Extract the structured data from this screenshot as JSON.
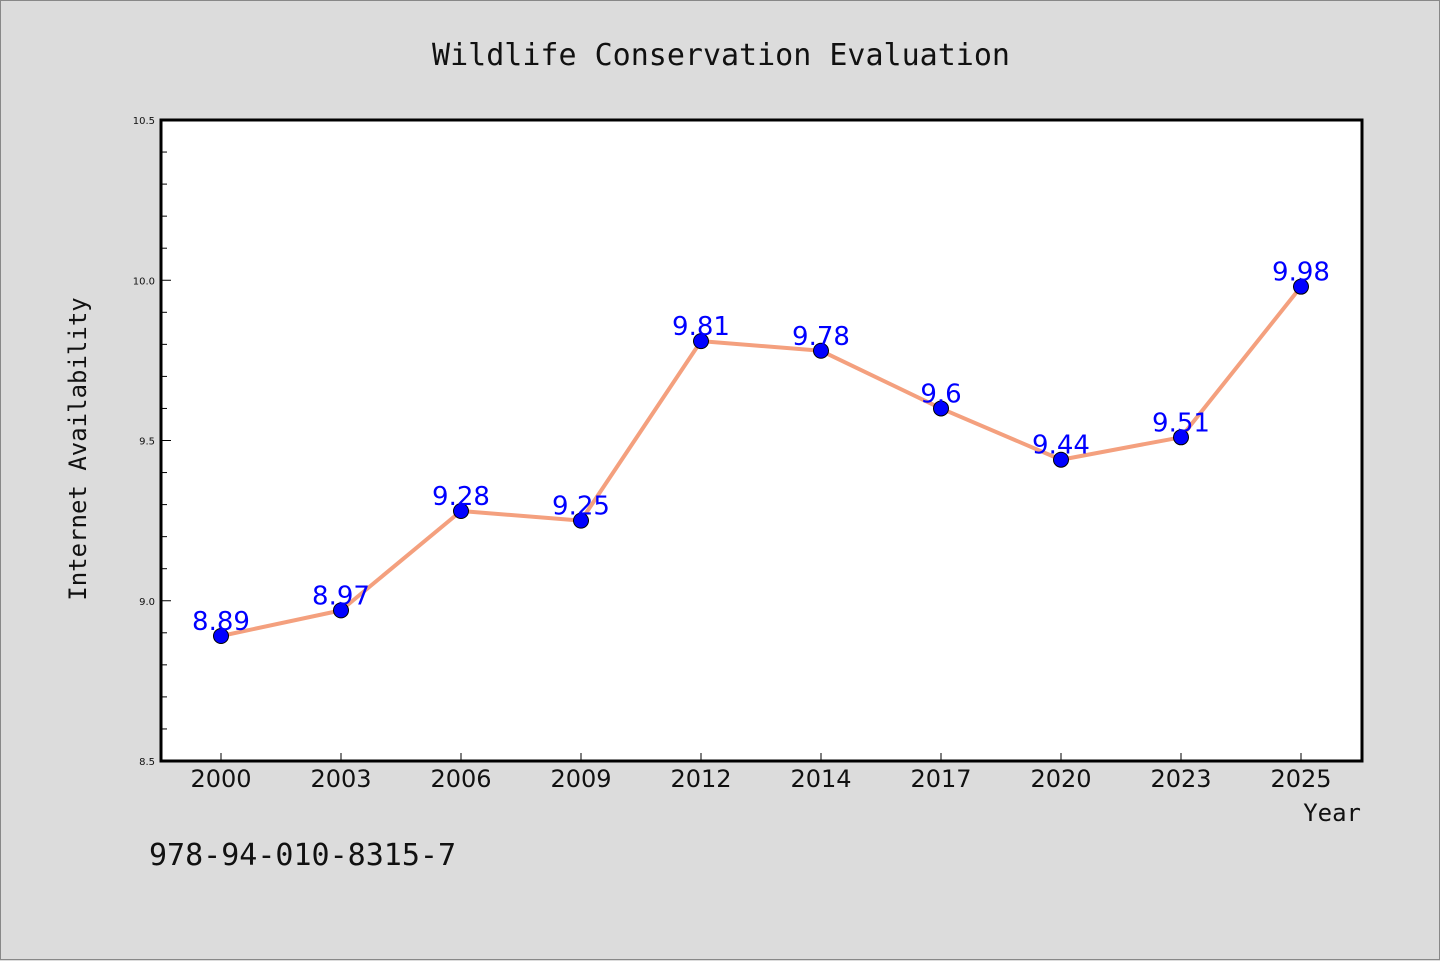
{
  "chart_data": {
    "type": "line",
    "title": "Wildlife Conservation Evaluation",
    "xlabel": "Year",
    "ylabel": "Internet Availability",
    "categories": [
      "2000",
      "2003",
      "2006",
      "2009",
      "2012",
      "2014",
      "2017",
      "2020",
      "2023",
      "2025"
    ],
    "values": [
      8.89,
      8.97,
      9.28,
      9.25,
      9.81,
      9.78,
      9.6,
      9.44,
      9.51,
      9.98
    ],
    "data_labels": [
      "8.89",
      "8.97",
      "9.28",
      "9.25",
      "9.81",
      "9.78",
      "9.6",
      "9.44",
      "9.51",
      "9.98"
    ],
    "ylim": [
      8.5,
      10.5
    ],
    "yticks": [
      "8.5",
      "9.0",
      "9.5",
      "10.0",
      "10.5"
    ],
    "grid": false,
    "legend": "none",
    "line_color": "#f4a07e",
    "marker_color": "#0000ff",
    "label_color": "#0000ff"
  },
  "footer": {
    "isbn": "978-94-010-8315-7"
  }
}
